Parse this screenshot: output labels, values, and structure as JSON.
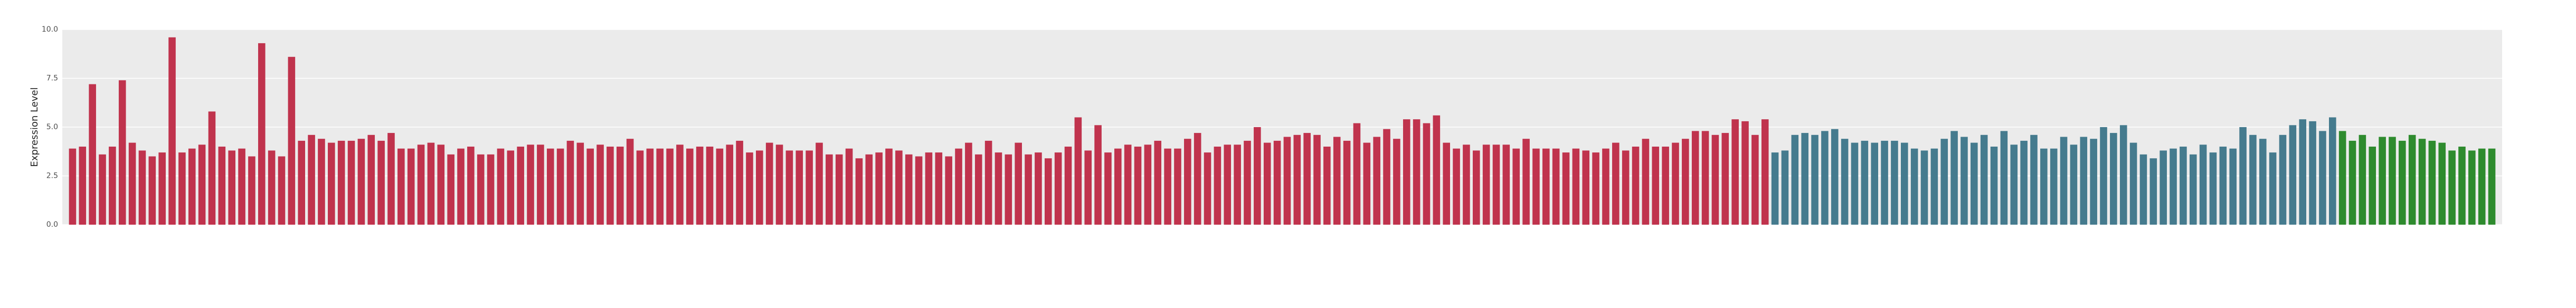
{
  "chart_data": {
    "type": "bar",
    "y_label": "Expression Level",
    "ylim": [
      0,
      10
    ],
    "yticks": [
      {
        "value": 0,
        "label": "0.0"
      },
      2.5,
      {
        "value": 5,
        "label": "5.0"
      },
      7.5,
      {
        "value": 10,
        "label": "10.0"
      }
    ],
    "grid": true,
    "series": [
      {
        "color": "#c0334d",
        "values": [
          3.9,
          4.0,
          7.2,
          3.6,
          4.0,
          7.4,
          4.2,
          3.8,
          3.5,
          3.7,
          9.6,
          3.7,
          3.9,
          4.1,
          5.8,
          4.0,
          3.8,
          3.9,
          3.5,
          9.3,
          3.8,
          3.5,
          8.6,
          4.3,
          4.6,
          4.4,
          4.2,
          4.3,
          4.3,
          4.4,
          4.6,
          4.3,
          4.7,
          3.9,
          3.9,
          4.1,
          4.2,
          4.1,
          3.6,
          3.9,
          4.0,
          3.6,
          3.6,
          3.9,
          3.8,
          4.0,
          4.1,
          4.1,
          3.9,
          3.9,
          4.3,
          4.2,
          3.9,
          4.1,
          4.0,
          4.0,
          4.4,
          3.8,
          3.9,
          3.9,
          3.9,
          4.1,
          3.9,
          4.0,
          4.0,
          3.9,
          4.1,
          4.3,
          3.7,
          3.8,
          4.2,
          4.1,
          3.8,
          3.8,
          3.8,
          4.2,
          3.6,
          3.6,
          3.9,
          3.4,
          3.6,
          3.7,
          3.9,
          3.8,
          3.6,
          3.5,
          3.7,
          3.7,
          3.5,
          3.9,
          4.2,
          3.6,
          4.3,
          3.7,
          3.6,
          4.2,
          3.6,
          3.7,
          3.4,
          3.7,
          4.0,
          5.5,
          3.8,
          5.1,
          3.7,
          3.9,
          4.1,
          4.0,
          4.1,
          4.3,
          3.9,
          3.9,
          4.4,
          4.7,
          3.7,
          4.0,
          4.1,
          4.1,
          4.3,
          5.0,
          4.2,
          4.3,
          4.5,
          4.6,
          4.7,
          4.6,
          4.0,
          4.5,
          4.3,
          5.2,
          4.2,
          4.5,
          4.9,
          4.4,
          5.4,
          5.4,
          5.2,
          5.6,
          4.2,
          3.9,
          4.1,
          3.8,
          4.1,
          4.1,
          4.1,
          3.9,
          4.4,
          3.9,
          3.9,
          3.9,
          3.7,
          3.9,
          3.8,
          3.7,
          3.9,
          4.2,
          3.8,
          4.0,
          4.4,
          4.0,
          4.0,
          4.2,
          4.4,
          4.8,
          4.8,
          4.6,
          4.7,
          5.4,
          5.3,
          4.6,
          5.4
        ]
      },
      {
        "color": "#457b8e",
        "values": [
          3.7,
          3.8,
          4.6,
          4.7,
          4.6,
          4.8,
          4.9,
          4.4,
          4.2,
          4.3,
          4.2,
          4.3,
          4.3,
          4.2,
          3.9,
          3.8,
          3.9,
          4.4,
          4.8,
          4.5,
          4.2,
          4.6,
          4.0,
          4.8,
          4.1,
          4.3,
          4.6,
          3.9,
          3.9,
          4.5,
          4.1,
          4.5,
          4.4,
          5.0,
          4.7,
          5.1,
          4.2,
          3.6,
          3.4,
          3.8,
          3.9,
          4.0,
          3.6,
          4.1,
          3.7,
          4.0,
          3.9,
          5.0,
          4.6,
          4.4,
          3.7,
          4.6,
          5.1,
          5.4,
          5.3,
          4.8,
          5.5
        ]
      },
      {
        "color": "#2e8b2e",
        "values": [
          4.8,
          4.3,
          4.6,
          4.0,
          4.5,
          4.5,
          4.3,
          4.6,
          4.4,
          4.3,
          4.2,
          3.8,
          4.0,
          3.8,
          3.9,
          3.9
        ]
      }
    ]
  }
}
